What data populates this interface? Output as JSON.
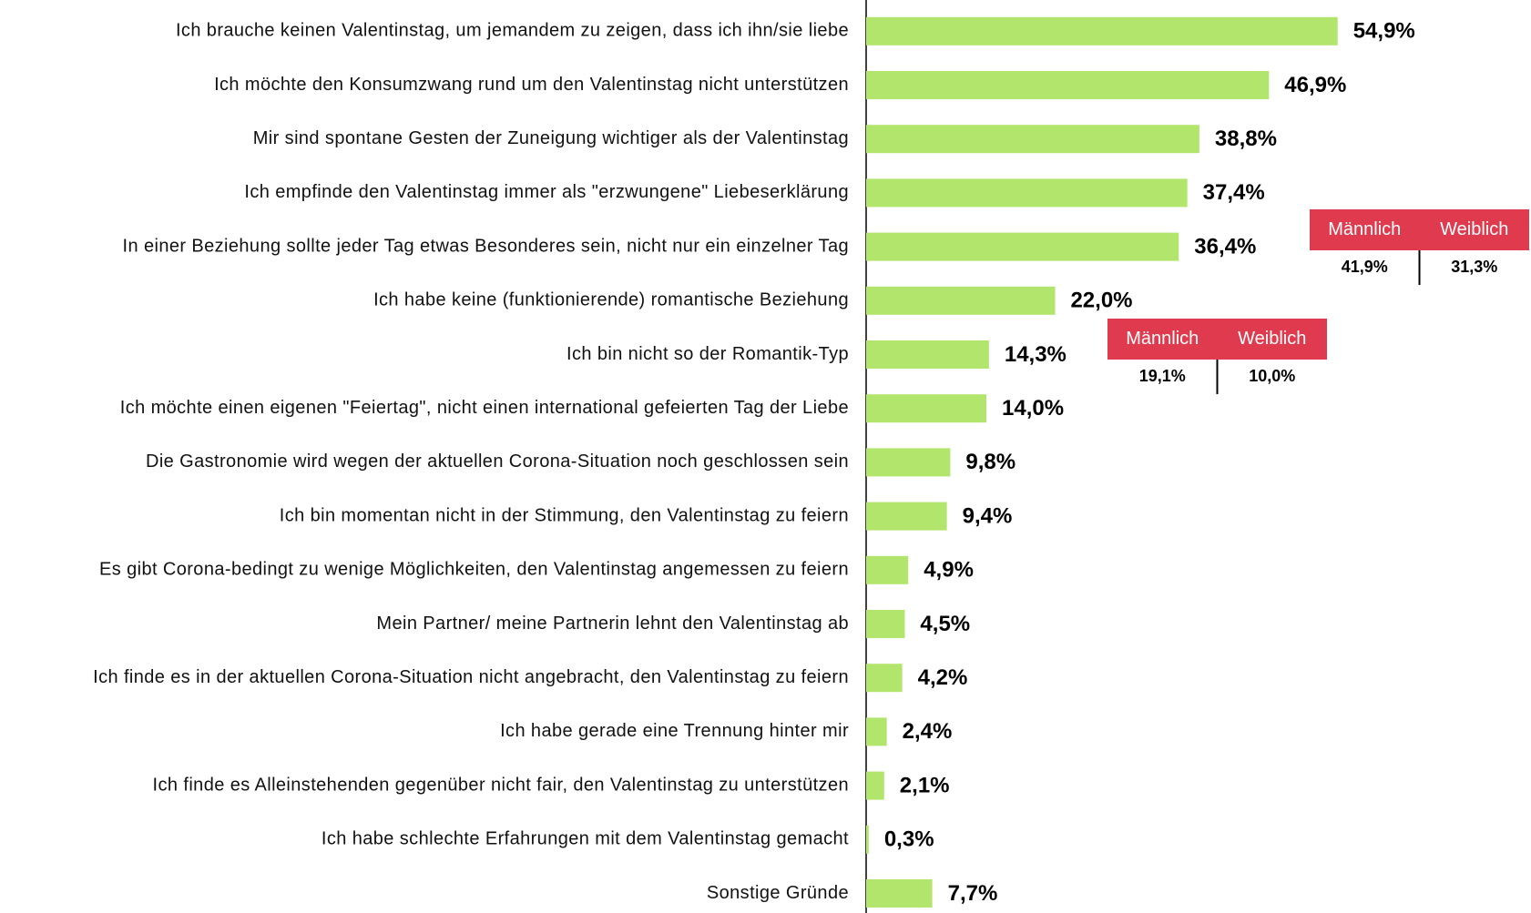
{
  "chart_data": {
    "type": "bar",
    "orientation": "horizontal",
    "color": "#b2e56b",
    "categories": [
      "Ich brauche keinen Valentinstag, um jemandem zu zeigen, dass ich ihn/sie liebe",
      "Ich möchte den Konsumzwang rund um den Valentinstag nicht unterstützen",
      "Mir sind spontane Gesten der Zuneigung wichtiger als der Valentinstag",
      "Ich empfinde den Valentinstag immer als \"erzwungene\" Liebeserklärung",
      "In einer Beziehung sollte jeder Tag etwas Besonderes sein, nicht nur ein einzelner Tag",
      "Ich habe keine (funktionierende) romantische Beziehung",
      "Ich bin nicht so der Romantik-Typ",
      "Ich möchte einen eigenen \"Feiertag\", nicht einen international gefeierten Tag der Liebe",
      "Die Gastronomie wird wegen der aktuellen Corona-Situation noch geschlossen sein",
      "Ich bin momentan nicht in der Stimmung, den Valentinstag zu feiern",
      "Es gibt Corona-bedingt zu wenige Möglichkeiten, den Valentinstag angemessen zu feiern",
      "Mein Partner/ meine Partnerin lehnt den Valentinstag ab",
      "Ich finde es in der aktuellen Corona-Situation nicht angebracht, den Valentinstag zu feiern",
      "Ich habe gerade eine Trennung hinter mir",
      "Ich finde es Alleinstehenden gegenüber nicht fair, den Valentinstag zu unterstützen",
      "Ich habe schlechte Erfahrungen mit dem Valentinstag gemacht",
      "Sonstige Gründe"
    ],
    "values": [
      54.9,
      46.9,
      38.8,
      37.4,
      36.4,
      22.0,
      14.3,
      14.0,
      9.8,
      9.4,
      4.9,
      4.5,
      4.2,
      2.4,
      2.1,
      0.3,
      7.7
    ],
    "value_labels": [
      "54,9%",
      "46,9%",
      "38,8%",
      "37,4%",
      "36,4%",
      "22,0%",
      "14,3%",
      "14,0%",
      "9,8%",
      "9,4%",
      "4,9%",
      "4,5%",
      "4,2%",
      "2,4%",
      "2,1%",
      "0,3%",
      "7,7%"
    ],
    "annotations": [
      {
        "labels": [
          "Männlich",
          "Weiblich"
        ],
        "value_labels": [
          "41,9%",
          "31,3%"
        ],
        "color": "#e03a4e"
      },
      {
        "labels": [
          "Männlich",
          "Weiblich"
        ],
        "value_labels": [
          "19,1%",
          "10,0%"
        ],
        "color": "#e03a4e"
      }
    ]
  }
}
